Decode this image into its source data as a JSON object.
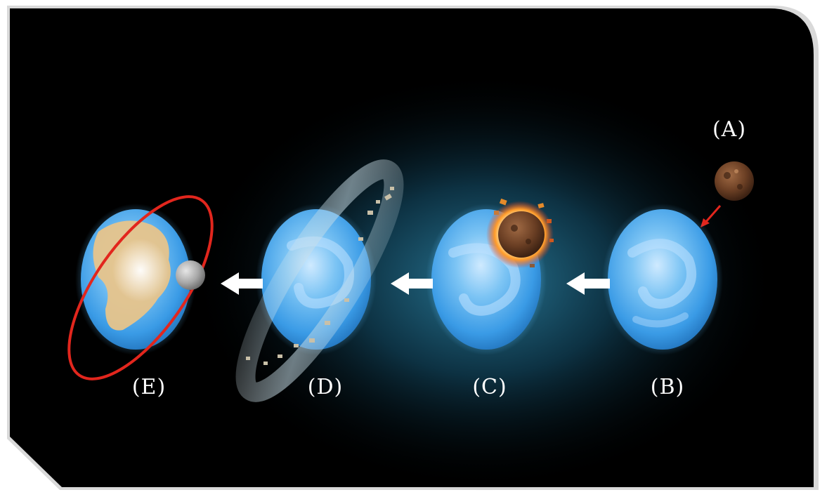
{
  "stages": [
    {
      "id": "A",
      "label": "(A)"
    },
    {
      "id": "B",
      "label": "(B)"
    },
    {
      "id": "C",
      "label": "(C)"
    },
    {
      "id": "D",
      "label": "(D)"
    },
    {
      "id": "E",
      "label": "(E)"
    }
  ],
  "colors": {
    "background": "#000000",
    "frame": "#d9d9d9",
    "glow": "#1f6f8f",
    "ocean": "#3ea3e8",
    "orbit": "#e2261d",
    "arrow": "#ffffff",
    "impactor": "#6b3f24",
    "moon": "#a7a7a7",
    "continent": "#e7c48b"
  }
}
